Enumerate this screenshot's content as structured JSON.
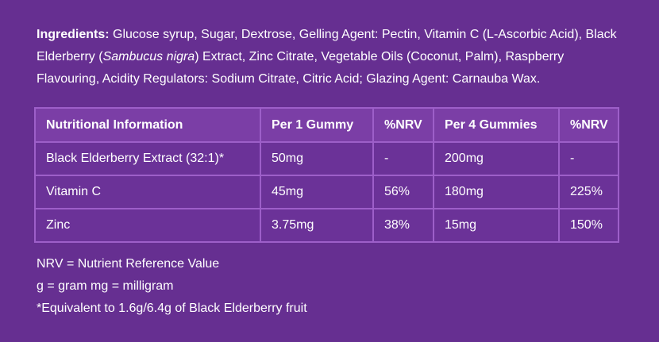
{
  "colors": {
    "background": "#662f91",
    "table_header_bg": "#7b3ea6",
    "table_body_bg": "#6b3298",
    "table_border": "#9d5fc9",
    "text": "#ffffff"
  },
  "ingredients": {
    "label": "Ingredients:",
    "text_before_italic": " Glucose syrup, Sugar, Dextrose, Gelling Agent: Pectin, Vitamin C (L-Ascorbic Acid), Black Elderberry (",
    "italic_species": "Sambucus nigra",
    "text_after_italic": ") Extract, Zinc Citrate, Vegetable Oils (Coconut, Palm), Raspberry Flavouring, Acidity Regulators: Sodium Citrate, Citric Acid; Glazing Agent: Carnauba Wax."
  },
  "table": {
    "headers": [
      "Nutritional Information",
      "Per 1 Gummy",
      "%NRV",
      "Per 4 Gummies",
      "%NRV"
    ],
    "rows": [
      [
        "Black Elderberry Extract (32:1)*",
        "50mg",
        "-",
        "200mg",
        "-"
      ],
      [
        "Vitamin C",
        "45mg",
        "56%",
        "180mg",
        "225%"
      ],
      [
        "Zinc",
        "3.75mg",
        "38%",
        "15mg",
        "150%"
      ]
    ]
  },
  "footnotes": [
    "NRV = Nutrient Reference Value",
    "g = gram mg = milligram",
    "*Equivalent to 1.6g/6.4g of Black Elderberry fruit"
  ]
}
